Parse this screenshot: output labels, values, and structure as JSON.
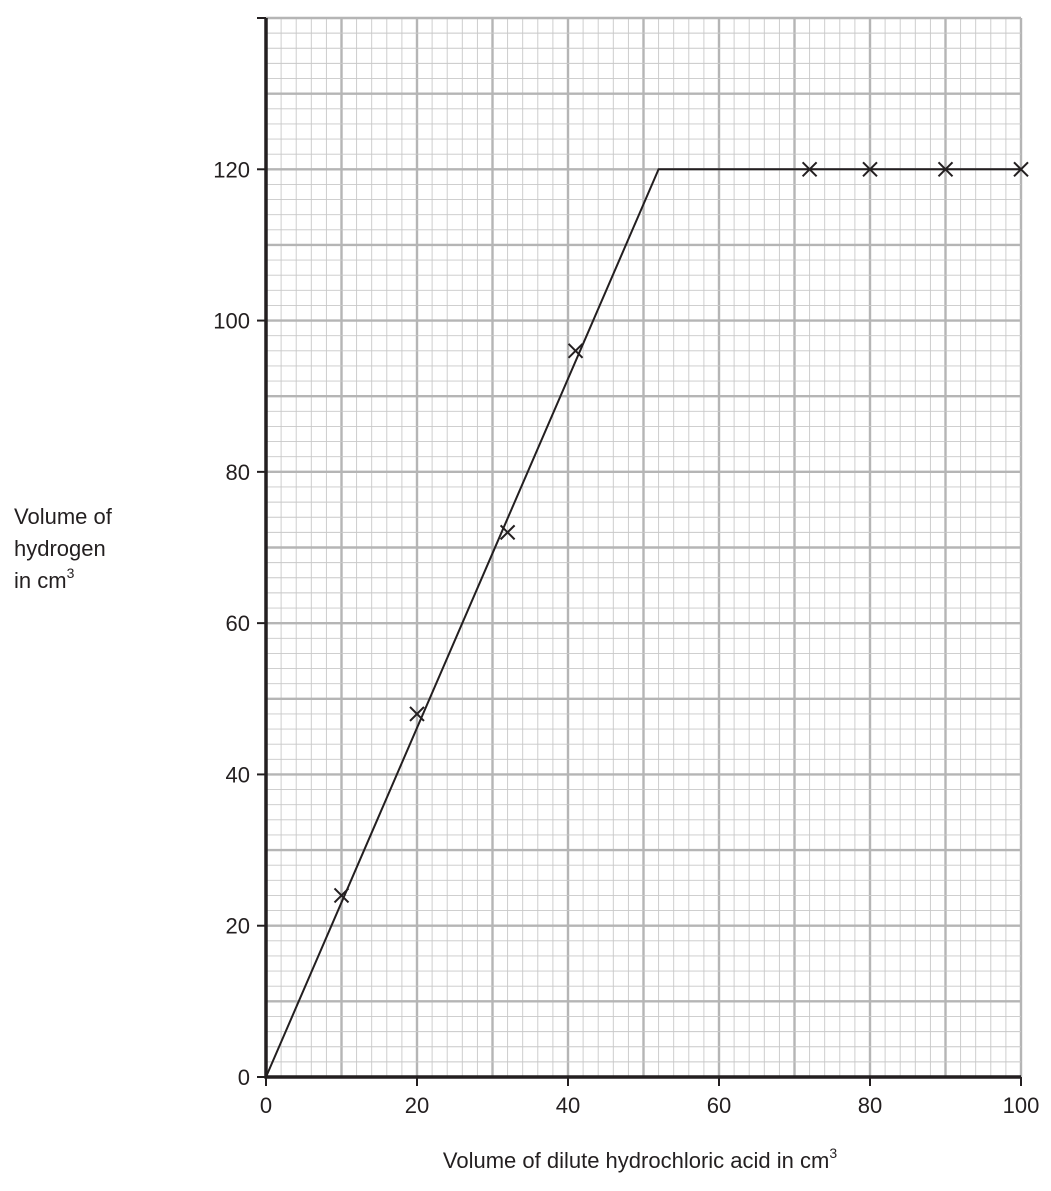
{
  "chart_data": {
    "type": "line",
    "xlabel": "Volume of dilute hydrochloric acid in cm",
    "xlabel_sup": "3",
    "ylabel_lines": [
      "Volume of",
      "hydrogen",
      "in cm"
    ],
    "ylabel_sup": "3",
    "xlim": [
      0,
      100
    ],
    "ylim": [
      0,
      140
    ],
    "x_ticks": [
      0,
      20,
      40,
      60,
      80,
      100
    ],
    "y_ticks": [
      0,
      20,
      40,
      60,
      80,
      100,
      120
    ],
    "grid": {
      "minor_step_x": 2,
      "minor_step_y": 2,
      "major_step_x": 10,
      "major_step_y": 10
    },
    "points": [
      {
        "x": 10,
        "y": 24
      },
      {
        "x": 20,
        "y": 48
      },
      {
        "x": 32,
        "y": 72
      },
      {
        "x": 41,
        "y": 96
      },
      {
        "x": 72,
        "y": 120
      },
      {
        "x": 80,
        "y": 120
      },
      {
        "x": 90,
        "y": 120
      },
      {
        "x": 100,
        "y": 120
      }
    ],
    "best_fit_line": [
      {
        "x": 0,
        "y": 0
      },
      {
        "x": 52,
        "y": 120
      },
      {
        "x": 100,
        "y": 120
      }
    ],
    "marker": "x",
    "colors": {
      "minor_grid": "#c8c8c8",
      "major_grid": "#b5b5b5",
      "ink": "#231f20"
    }
  }
}
